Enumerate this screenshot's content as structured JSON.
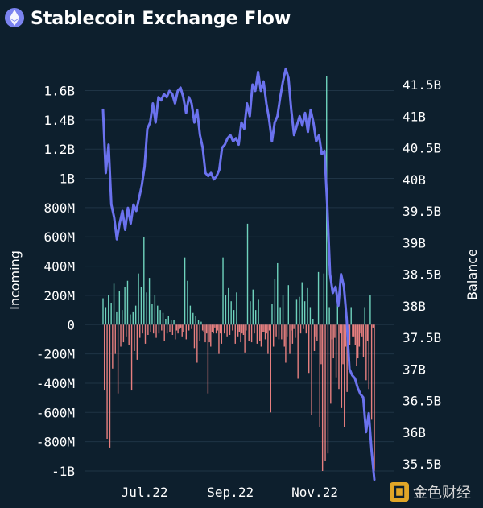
{
  "header": {
    "title": "Stablecoin Exchange Flow",
    "logo_icon": "ethereum-icon"
  },
  "watermark": {
    "text": "金色财经",
    "icon": "jinse-logo-icon"
  },
  "colors": {
    "background": "#0d1f2d",
    "balance_line": "#6b72ee",
    "inflow_bar": "#6fd3bd",
    "outflow_bar": "#e77f7f",
    "logo_circle": "#7b83f0",
    "watermark_gold": "#e0a627"
  },
  "chart_data": {
    "type": "bar+line",
    "title": "Stablecoin Exchange Flow",
    "y_left": {
      "label": "Incoming",
      "range": [
        -1000000000,
        1700000000
      ],
      "ticks": [
        1600000000,
        1400000000,
        1200000000,
        1000000000,
        800000000,
        600000000,
        400000000,
        200000000,
        0,
        -200000000,
        -400000000,
        -600000000,
        -800000000,
        -1000000000
      ],
      "tick_labels": [
        "1.6B",
        "1.4B",
        "1.2B",
        "1B",
        "800M",
        "600M",
        "400M",
        "200M",
        "0",
        "-200M",
        "-400M",
        "-600M",
        "-800M",
        "-1B"
      ]
    },
    "y_right": {
      "label": "Balance",
      "range": [
        35.3,
        41.8
      ],
      "ticks": [
        41.5,
        41,
        40.5,
        40,
        39.5,
        39,
        38.5,
        38,
        37.5,
        37,
        36.5,
        36,
        35.5
      ],
      "tick_labels": [
        "41.5B",
        "41B",
        "40.5B",
        "40B",
        "39.5B",
        "39B",
        "38.5B",
        "38B",
        "37.5B",
        "37B",
        "36.5B",
        "36B",
        "35.5B"
      ]
    },
    "x_axis": {
      "start": "2022-06-01",
      "end": "2022-12-14",
      "ticks": [
        "2022-07-01",
        "2022-09-01",
        "2022-11-01"
      ],
      "tick_labels": [
        "Jul.22",
        "Sep.22",
        "Nov.22"
      ]
    },
    "series": [
      {
        "name": "Incoming",
        "type": "bar",
        "unit": "USD",
        "values_millions": [
          180,
          -450,
          120,
          -780,
          200,
          -840,
          150,
          -300,
          280,
          -200,
          90,
          -470,
          230,
          -150,
          100,
          -120,
          260,
          -80,
          300,
          -140,
          70,
          -450,
          90,
          -180,
          130,
          -240,
          350,
          -90,
          260,
          -60,
          600,
          -130,
          220,
          -70,
          320,
          -50,
          140,
          -60,
          200,
          -90,
          130,
          -60,
          100,
          -40,
          80,
          -110,
          40,
          -60,
          60,
          -50,
          30,
          -70,
          30,
          -100,
          -40,
          -60,
          -30,
          -20,
          -80,
          -50,
          460,
          -100,
          300,
          -40,
          130,
          -30,
          80,
          -160,
          60,
          -260,
          30,
          -110,
          20,
          -40,
          -50,
          -120,
          -60,
          -470,
          -120,
          -150,
          -50,
          -60,
          -20,
          -60,
          -40,
          -200,
          -60,
          -130,
          460,
          -60,
          200,
          -80,
          250,
          -70,
          160,
          -40,
          100,
          -130,
          220,
          -80,
          -50,
          -120,
          -60,
          -70,
          -190,
          -40,
          690,
          -110,
          160,
          -120,
          240,
          -60,
          100,
          -130,
          170,
          -110,
          -150,
          -50,
          -50,
          -100,
          -60,
          -200,
          -40,
          -600,
          140,
          -150,
          310,
          -80,
          420,
          -100,
          120,
          -100,
          200,
          -150,
          -260,
          -80,
          270,
          -200,
          -40,
          -130,
          -30,
          -90,
          170,
          -370,
          190,
          -60,
          290,
          -30,
          160,
          -60,
          250,
          -330,
          120,
          -620,
          40,
          -180,
          -80,
          -110,
          360,
          -700,
          -270,
          -1000,
          350,
          -930,
          1700,
          -880,
          120,
          -540,
          -100,
          -230,
          -90,
          -360,
          200,
          -440,
          -60,
          -570,
          -270,
          -700,
          -150,
          -460,
          -60,
          -140,
          120,
          -80,
          -80,
          -140,
          -280,
          -230,
          -150,
          -60,
          -80,
          -220,
          120,
          -380,
          -110,
          -440,
          200,
          -650,
          -20,
          -1000
        ]
      },
      {
        "name": "Balance",
        "type": "line",
        "unit": "USD billions",
        "points": [
          [
            "2022-06-01",
            41.1
          ],
          [
            "2022-06-03",
            40.1
          ],
          [
            "2022-06-05",
            40.55
          ],
          [
            "2022-06-07",
            39.6
          ],
          [
            "2022-06-09",
            39.4
          ],
          [
            "2022-06-11",
            39.05
          ],
          [
            "2022-06-13",
            39.3
          ],
          [
            "2022-06-15",
            39.5
          ],
          [
            "2022-06-17",
            39.2
          ],
          [
            "2022-06-19",
            39.55
          ],
          [
            "2022-06-21",
            39.3
          ],
          [
            "2022-06-23",
            39.6
          ],
          [
            "2022-06-25",
            39.5
          ],
          [
            "2022-06-27",
            39.7
          ],
          [
            "2022-06-29",
            39.9
          ],
          [
            "2022-07-01",
            40.2
          ],
          [
            "2022-07-03",
            40.8
          ],
          [
            "2022-07-05",
            40.9
          ],
          [
            "2022-07-07",
            41.2
          ],
          [
            "2022-07-09",
            40.9
          ],
          [
            "2022-07-11",
            41.3
          ],
          [
            "2022-07-13",
            41.25
          ],
          [
            "2022-07-15",
            41.35
          ],
          [
            "2022-07-17",
            41.3
          ],
          [
            "2022-07-19",
            41.4
          ],
          [
            "2022-07-21",
            41.35
          ],
          [
            "2022-07-23",
            41.2
          ],
          [
            "2022-07-25",
            41.4
          ],
          [
            "2022-07-27",
            41.45
          ],
          [
            "2022-07-29",
            41.3
          ],
          [
            "2022-07-31",
            41.05
          ],
          [
            "2022-08-02",
            41.3
          ],
          [
            "2022-08-04",
            41.2
          ],
          [
            "2022-08-06",
            40.9
          ],
          [
            "2022-08-08",
            41.1
          ],
          [
            "2022-08-10",
            40.7
          ],
          [
            "2022-08-12",
            40.5
          ],
          [
            "2022-08-14",
            40.1
          ],
          [
            "2022-08-16",
            40.05
          ],
          [
            "2022-08-18",
            40.1
          ],
          [
            "2022-08-20",
            40.0
          ],
          [
            "2022-08-22",
            40.05
          ],
          [
            "2022-08-24",
            40.15
          ],
          [
            "2022-08-26",
            40.5
          ],
          [
            "2022-08-28",
            40.55
          ],
          [
            "2022-08-30",
            40.65
          ],
          [
            "2022-09-01",
            40.7
          ],
          [
            "2022-09-03",
            40.6
          ],
          [
            "2022-09-05",
            40.65
          ],
          [
            "2022-09-07",
            40.55
          ],
          [
            "2022-09-09",
            40.9
          ],
          [
            "2022-09-11",
            40.8
          ],
          [
            "2022-09-13",
            41.2
          ],
          [
            "2022-09-15",
            41.0
          ],
          [
            "2022-09-17",
            41.5
          ],
          [
            "2022-09-19",
            41.4
          ],
          [
            "2022-09-21",
            41.7
          ],
          [
            "2022-09-23",
            41.4
          ],
          [
            "2022-09-25",
            41.55
          ],
          [
            "2022-09-27",
            41.2
          ],
          [
            "2022-09-29",
            40.95
          ],
          [
            "2022-10-01",
            40.6
          ],
          [
            "2022-10-03",
            40.9
          ],
          [
            "2022-10-05",
            41.0
          ],
          [
            "2022-10-07",
            41.3
          ],
          [
            "2022-10-09",
            41.55
          ],
          [
            "2022-10-11",
            41.75
          ],
          [
            "2022-10-13",
            41.6
          ],
          [
            "2022-10-15",
            41.1
          ],
          [
            "2022-10-17",
            40.7
          ],
          [
            "2022-10-19",
            40.85
          ],
          [
            "2022-10-21",
            41.0
          ],
          [
            "2022-10-23",
            40.85
          ],
          [
            "2022-10-25",
            41.05
          ],
          [
            "2022-10-27",
            40.75
          ],
          [
            "2022-10-29",
            41.1
          ],
          [
            "2022-10-31",
            40.9
          ],
          [
            "2022-11-02",
            40.6
          ],
          [
            "2022-11-04",
            40.7
          ],
          [
            "2022-11-06",
            40.4
          ],
          [
            "2022-11-08",
            40.45
          ],
          [
            "2022-11-10",
            39.6
          ],
          [
            "2022-11-12",
            38.5
          ],
          [
            "2022-11-14",
            38.2
          ],
          [
            "2022-11-16",
            38.3
          ],
          [
            "2022-11-18",
            38.0
          ],
          [
            "2022-11-20",
            38.5
          ],
          [
            "2022-11-22",
            38.3
          ],
          [
            "2022-11-24",
            37.8
          ],
          [
            "2022-11-26",
            37.0
          ],
          [
            "2022-11-28",
            36.9
          ],
          [
            "2022-11-30",
            36.85
          ],
          [
            "2022-12-02",
            36.7
          ],
          [
            "2022-12-04",
            36.6
          ],
          [
            "2022-12-06",
            36.55
          ],
          [
            "2022-12-08",
            36.0
          ],
          [
            "2022-12-10",
            36.3
          ],
          [
            "2022-12-12",
            35.7
          ],
          [
            "2022-12-14",
            35.25
          ]
        ]
      }
    ]
  }
}
